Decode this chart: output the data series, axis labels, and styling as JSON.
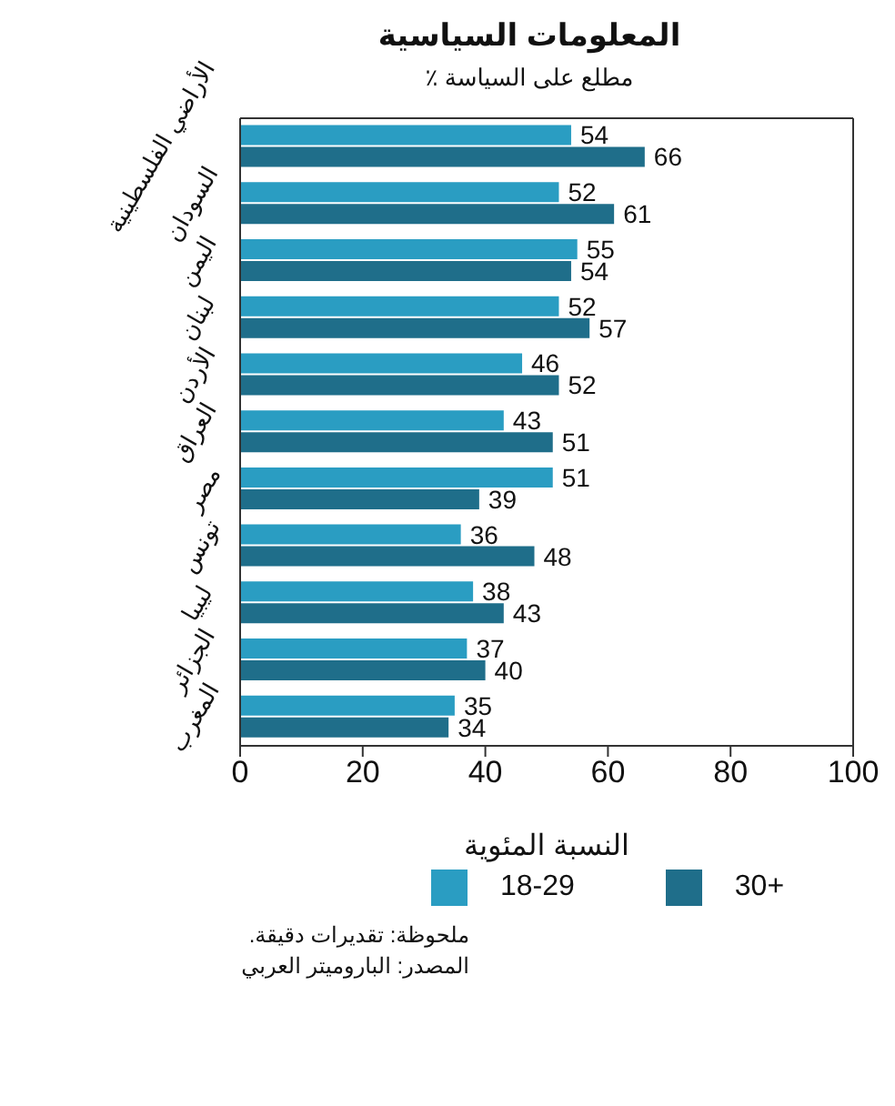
{
  "chart_data": {
    "type": "bar",
    "orientation": "horizontal",
    "title": "المعلومات السياسية",
    "subtitle": "٪ مطلع على السياسة",
    "xlabel": "النسبة المئوية",
    "categories": [
      "الأراضي الفلسطينية",
      "السودان",
      "اليمن",
      "لبنان",
      "الأردن",
      "العراق",
      "مصر",
      "تونس",
      "ليبيا",
      "الجزائر",
      "المغرب"
    ],
    "series": [
      {
        "name": "18-29",
        "color": "#2a9dc2",
        "values": [
          54,
          52,
          55,
          52,
          46,
          43,
          51,
          36,
          38,
          37,
          35
        ]
      },
      {
        "name": "30+",
        "color": "#1f6e8a",
        "values": [
          66,
          61,
          54,
          57,
          52,
          51,
          39,
          48,
          43,
          40,
          34
        ]
      }
    ],
    "xlim": [
      0,
      100
    ],
    "xticks": [
      0,
      20,
      40,
      60,
      80,
      100
    ],
    "data_labels": true,
    "legend": "bottom",
    "grid": false,
    "annotations": [
      "ملحوظة: تقديرات دقيقة.",
      "المصدر: الباروميتر العربي"
    ]
  }
}
